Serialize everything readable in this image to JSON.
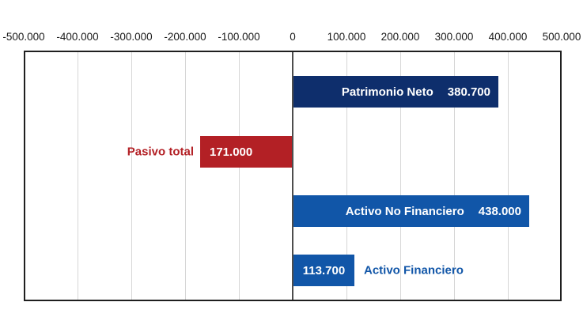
{
  "chart_data": {
    "type": "bar",
    "orientation": "horizontal",
    "title": "",
    "xlabel": "",
    "ylabel": "",
    "xlim": [
      -500000,
      500000
    ],
    "tick_step": 100000,
    "tick_labels": [
      "-500.000",
      "-400.000",
      "-300.000",
      "-200.000",
      "-100.000",
      "0",
      "100.000",
      "200.000",
      "300.000",
      "400.000",
      "500.000"
    ],
    "grid": true,
    "legend": "none",
    "categories": [
      "Patrimonio Neto",
      "Pasivo total",
      "Activo No Financiero",
      "Activo Financiero"
    ],
    "values": [
      380700,
      -171000,
      438000,
      113700
    ],
    "bars": [
      {
        "name": "Patrimonio Neto",
        "value": 380700,
        "display_value": "380.700",
        "color": "#0e2e6c",
        "label_placement": "inside-right",
        "label_color": "#ffffff"
      },
      {
        "name": "Pasivo total",
        "value": -171000,
        "display_value": "171.000",
        "color": "#b32025",
        "label_placement": "outside-left",
        "label_color": "#b32025"
      },
      {
        "name": "Activo No Financiero",
        "value": 438000,
        "display_value": "438.000",
        "color": "#1156a8",
        "label_placement": "inside-right",
        "label_color": "#ffffff"
      },
      {
        "name": "Activo Financiero",
        "value": 113700,
        "display_value": "113.700",
        "color": "#1156a8",
        "label_placement": "outside-right",
        "label_color": "#1156a8"
      }
    ]
  },
  "colors": {
    "gridline": "#d6d6d6",
    "zero_line": "#4d4d4d",
    "plot_border": "#1f1f1f",
    "axis_text": "#1a1a1a",
    "background": "#ffffff"
  }
}
